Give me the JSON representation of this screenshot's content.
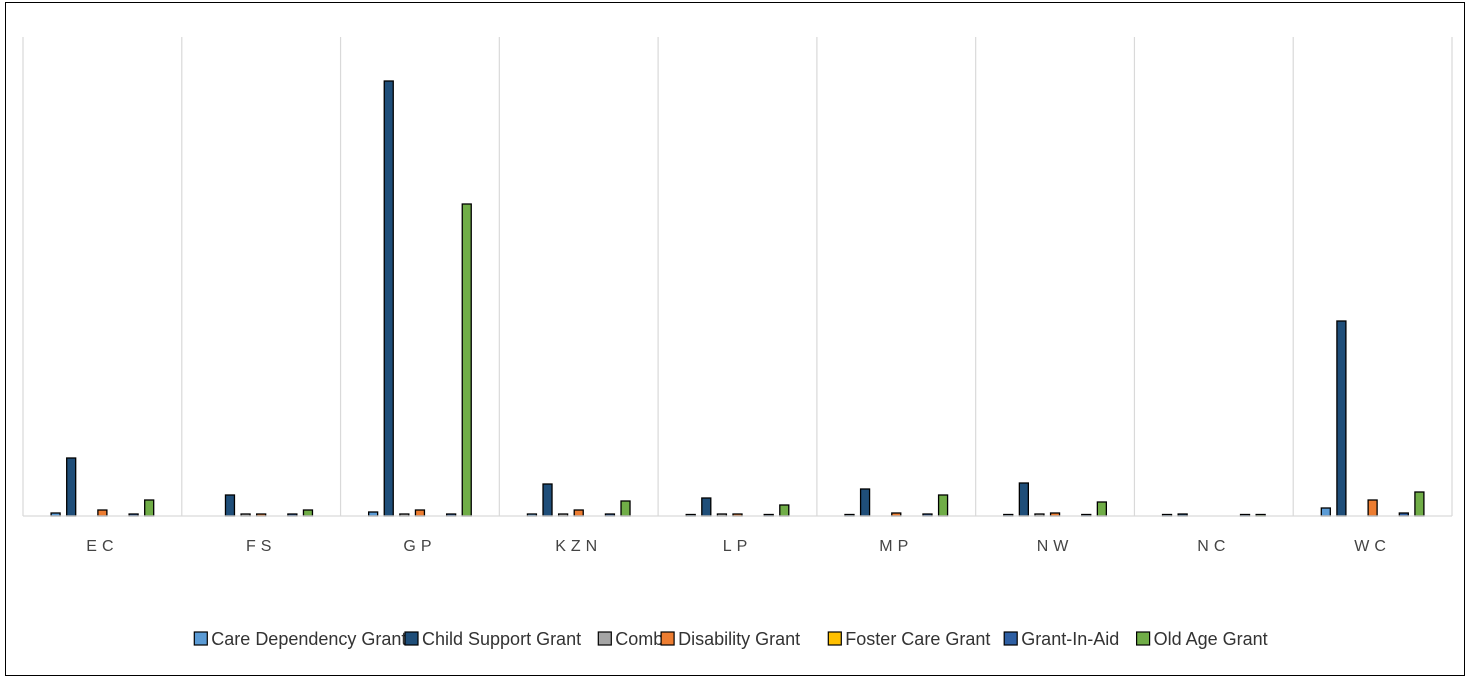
{
  "chart_data": {
    "type": "bar",
    "title": "",
    "xlabel": "",
    "ylabel": "",
    "categories": [
      "EC",
      "FS",
      "GP",
      "KZN",
      "LP",
      "MP",
      "NW",
      "NC",
      "WC"
    ],
    "ylim": [
      0,
      440
    ],
    "grid": "vertical category separators",
    "legend_position": "bottom",
    "series": [
      {
        "name": "Care Dependency Grant",
        "color": "#5B9BD5",
        "values": [
          3,
          0,
          4,
          2,
          1,
          1,
          1,
          1,
          8
        ]
      },
      {
        "name": "Child Support Grant",
        "color": "#1F4E79",
        "values": [
          58,
          21,
          435,
          32,
          18,
          27,
          33,
          2,
          195
        ]
      },
      {
        "name": "Comb",
        "color": "#A5A5A5",
        "values": [
          0,
          2,
          2,
          2,
          2,
          0,
          2,
          0,
          0
        ]
      },
      {
        "name": "Disability Grant",
        "color": "#ED7D31",
        "values": [
          6,
          2,
          6,
          6,
          2,
          3,
          3,
          0,
          16
        ]
      },
      {
        "name": "Foster Care Grant",
        "color": "#FFC000",
        "values": [
          0,
          0,
          0,
          0,
          0,
          0,
          0,
          0,
          0
        ]
      },
      {
        "name": "Grant-In-Aid",
        "color": "#2E5FA3",
        "values": [
          2,
          2,
          2,
          2,
          1,
          2,
          1,
          1,
          3
        ]
      },
      {
        "name": "Old Age Grant",
        "color": "#70AD47",
        "values": [
          16,
          6,
          312,
          15,
          11,
          21,
          14,
          1,
          24
        ]
      }
    ]
  }
}
